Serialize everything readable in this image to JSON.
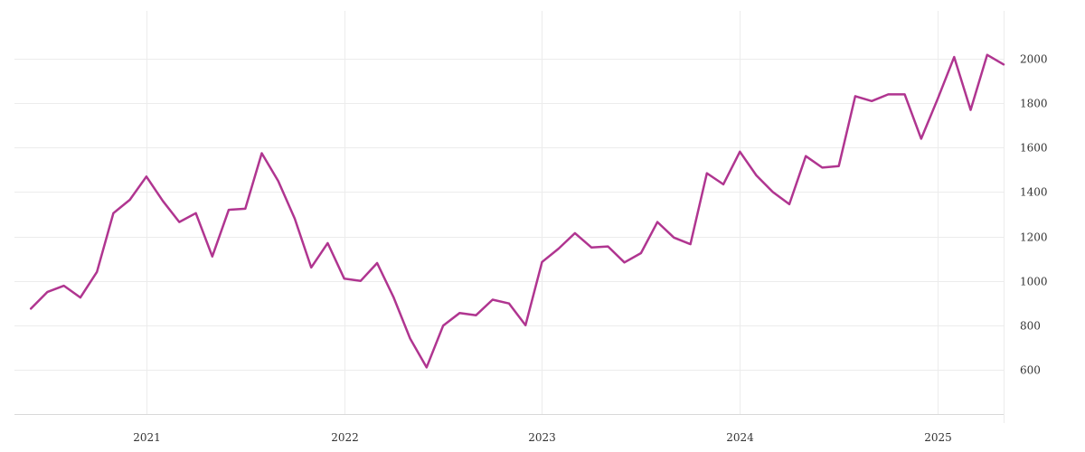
{
  "chart_data": {
    "type": "line",
    "title": "",
    "xlabel": "",
    "ylabel": "",
    "x_range": [
      "2020-05",
      "2025-05"
    ],
    "ylim": [
      400,
      2200
    ],
    "y_axis_position": "right",
    "grid": true,
    "legend": "none",
    "x_ticks": [
      {
        "date": "2021-01",
        "label": "2021"
      },
      {
        "date": "2022-01",
        "label": "2022"
      },
      {
        "date": "2023-01",
        "label": "2023"
      },
      {
        "date": "2024-01",
        "label": "2024"
      },
      {
        "date": "2025-01",
        "label": "2025"
      }
    ],
    "y_ticks": [
      {
        "value": 600,
        "label": "600"
      },
      {
        "value": 800,
        "label": "800"
      },
      {
        "value": 1000,
        "label": "1000"
      },
      {
        "value": 1200,
        "label": "1200"
      },
      {
        "value": 1400,
        "label": "1400"
      },
      {
        "value": 1600,
        "label": "1600"
      },
      {
        "value": 1800,
        "label": "1800"
      },
      {
        "value": 2000,
        "label": "2000"
      }
    ],
    "series": [
      {
        "color": "#b03590",
        "x": [
          "2020-06",
          "2020-07",
          "2020-08",
          "2020-09",
          "2020-10",
          "2020-11",
          "2020-12",
          "2021-01",
          "2021-02",
          "2021-03",
          "2021-04",
          "2021-05",
          "2021-06",
          "2021-07",
          "2021-08",
          "2021-09",
          "2021-10",
          "2021-11",
          "2021-12",
          "2022-01",
          "2022-02",
          "2022-03",
          "2022-04",
          "2022-05",
          "2022-06",
          "2022-07",
          "2022-08",
          "2022-09",
          "2022-10",
          "2022-11",
          "2022-12",
          "2023-01",
          "2023-02",
          "2023-03",
          "2023-04",
          "2023-05",
          "2023-06",
          "2023-07",
          "2023-08",
          "2023-09",
          "2023-10",
          "2023-11",
          "2023-12",
          "2024-01",
          "2024-02",
          "2024-03",
          "2024-04",
          "2024-05",
          "2024-06",
          "2024-07",
          "2024-08",
          "2024-09",
          "2024-10",
          "2024-11",
          "2024-12",
          "2025-01",
          "2025-02",
          "2025-03",
          "2025-04",
          "2025-05"
        ],
        "values": [
          875,
          950,
          978,
          925,
          1040,
          1305,
          1365,
          1470,
          1360,
          1265,
          1305,
          1110,
          1320,
          1325,
          1575,
          1450,
          1280,
          1060,
          1170,
          1010,
          1000,
          1080,
          925,
          740,
          610,
          798,
          855,
          845,
          915,
          898,
          800,
          1085,
          1145,
          1215,
          1150,
          1155,
          1083,
          1125,
          1265,
          1195,
          1165,
          1485,
          1435,
          1582,
          1475,
          1400,
          1345,
          1562,
          1510,
          1517,
          1832,
          1810,
          1840,
          1840,
          1640,
          1820,
          2008,
          1770,
          2018,
          1975
        ]
      }
    ]
  }
}
